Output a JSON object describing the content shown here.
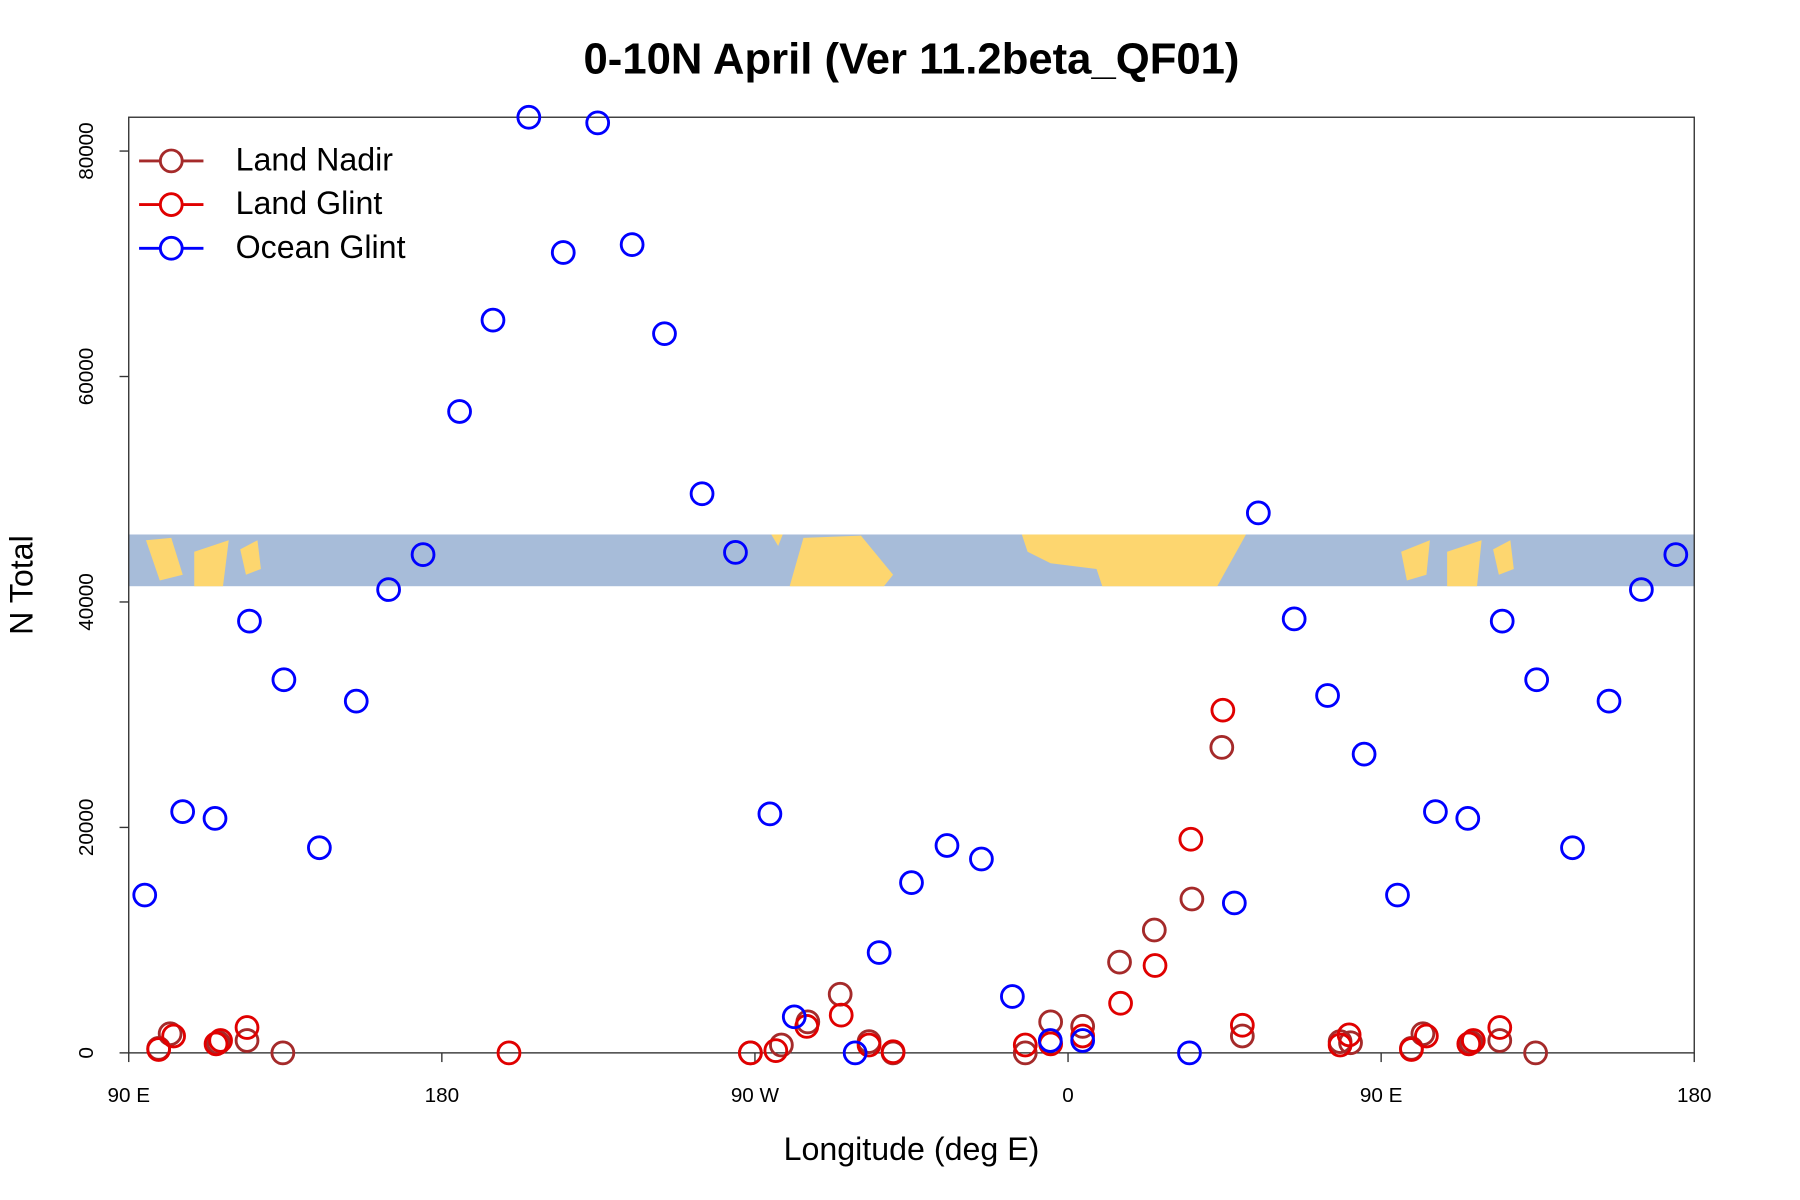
{
  "chart_data": {
    "type": "scatter",
    "title": "0-10N April (Ver 11.2beta_QF01)",
    "xlabel": "Longitude (deg E)",
    "ylabel": "N Total",
    "xlim": [
      90,
      540
    ],
    "ylim": [
      0,
      83000
    ],
    "xticks": [
      {
        "value": 90,
        "label": "90 E"
      },
      {
        "value": 180,
        "label": "180"
      },
      {
        "value": 270,
        "label": "90 W"
      },
      {
        "value": 360,
        "label": "0"
      },
      {
        "value": 450,
        "label": "90 E"
      },
      {
        "value": 540,
        "label": "180"
      }
    ],
    "yticks": [
      0,
      20000,
      40000,
      60000,
      80000
    ],
    "legend": "top-left",
    "series": [
      {
        "name": "Land Nadir",
        "color": "#a52a2a",
        "x": [
          98.6,
          101.9,
          115.8,
          124.0,
          134.3,
          268.7,
          277.6,
          285.2,
          294.5,
          302.8,
          309.7,
          347.7,
          355.0,
          364.2,
          374.8,
          384.8,
          395.6,
          404.2,
          410.1,
          438.2,
          441.2,
          458.7,
          462.0,
          475.9,
          484.1,
          494.4
        ],
        "values": [
          400,
          1700,
          900,
          1100,
          0,
          0,
          700,
          2750,
          5200,
          1000,
          0,
          0,
          2750,
          2350,
          8050,
          10900,
          13650,
          27100,
          1500,
          1000,
          900,
          400,
          1700,
          900,
          1100,
          0
        ]
      },
      {
        "name": "Land Glint",
        "color": "#e00000",
        "x": [
          98.6,
          102.9,
          115.1,
          116.4,
          124.0,
          199.3,
          268.7,
          276.0,
          284.9,
          294.8,
          302.8,
          309.7,
          347.7,
          355.0,
          364.2,
          375.1,
          385.0,
          395.3,
          404.5,
          410.1,
          438.2,
          440.8,
          458.7,
          463.0,
          475.2,
          476.5,
          484.1
        ],
        "values": [
          300,
          1500,
          800,
          1100,
          2250,
          0,
          0,
          200,
          2350,
          3350,
          700,
          100,
          700,
          800,
          1500,
          4400,
          7750,
          18950,
          30400,
          2450,
          700,
          1600,
          300,
          1500,
          800,
          1100,
          2250
        ]
      },
      {
        "name": "Ocean Glint",
        "color": "#0000ff",
        "x": [
          94.6,
          105.5,
          114.8,
          124.7,
          134.6,
          144.8,
          155.4,
          164.7,
          174.6,
          185.1,
          194.7,
          205.0,
          214.9,
          224.8,
          234.7,
          244.0,
          254.8,
          264.4,
          274.3,
          281.3,
          298.8,
          305.7,
          315.0,
          325.2,
          335.1,
          344.0,
          354.9,
          364.2,
          394.9,
          407.8,
          414.7,
          425.0,
          434.6,
          445.1,
          454.7,
          465.6,
          474.9,
          484.8,
          494.7,
          505.0,
          515.5,
          524.8,
          534.7
        ],
        "values": [
          14000,
          21400,
          20800,
          38300,
          33100,
          18200,
          31200,
          41100,
          44200,
          56900,
          65000,
          83000,
          71000,
          82500,
          71700,
          63800,
          49600,
          44400,
          21200,
          3200,
          0,
          8900,
          15100,
          18400,
          17200,
          5000,
          1100,
          1100,
          0,
          13300,
          47900,
          38500,
          31700,
          26500,
          14000,
          21400,
          20800,
          38300,
          33100,
          18200,
          31200,
          41100,
          44200
        ]
      }
    ]
  }
}
